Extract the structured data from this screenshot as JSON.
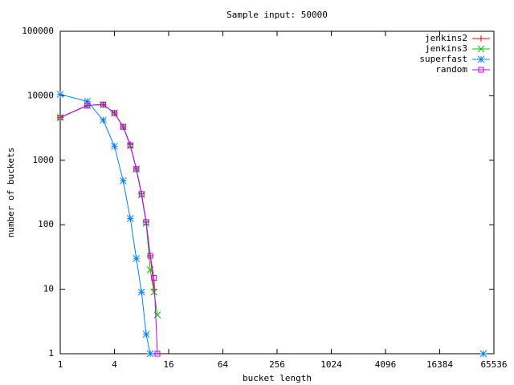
{
  "chart_data": {
    "type": "line",
    "title": "Sample input: 50000",
    "xlabel": "bucket length",
    "ylabel": "number of buckets",
    "logscale": {
      "x": 2,
      "y": 10
    },
    "x": [
      1,
      2,
      3,
      4,
      5,
      6,
      7,
      8,
      9,
      10,
      11,
      12,
      50000
    ],
    "series": [
      {
        "name": "jenkins2",
        "color": "#ff0000",
        "marker": "plus",
        "values": [
          4600,
          7100,
          7300,
          5400,
          3300,
          1750,
          730,
          300,
          110,
          33,
          10,
          null,
          null
        ]
      },
      {
        "name": "jenkins3",
        "color": "#00c000",
        "marker": "cross",
        "values": [
          4600,
          7100,
          7300,
          5400,
          3300,
          1700,
          730,
          290,
          105,
          20,
          9,
          4,
          null
        ]
      },
      {
        "name": "superfast",
        "color": "#0080ff",
        "marker": "star",
        "values": [
          10500,
          8200,
          4200,
          1650,
          480,
          125,
          30,
          9,
          2,
          1,
          null,
          null,
          1
        ]
      },
      {
        "name": "random",
        "color": "#c000ff",
        "marker": "box",
        "values": [
          4600,
          7100,
          7300,
          5400,
          3300,
          1700,
          730,
          300,
          110,
          33,
          15,
          1,
          null
        ]
      }
    ],
    "xlim": [
      1,
      65536
    ],
    "xticks": [
      1,
      4,
      16,
      64,
      256,
      1024,
      4096,
      16384,
      65536
    ],
    "ylim": [
      1,
      100000
    ],
    "yticks": [
      1,
      10,
      100,
      1000,
      10000,
      100000
    ],
    "legend": "top-right"
  }
}
